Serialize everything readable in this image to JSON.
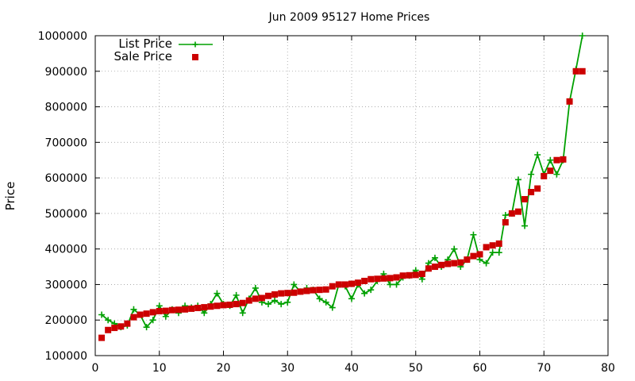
{
  "chart_data": {
    "type": "line",
    "title": "Jun 2009 95127 Home Prices",
    "xlabel": "",
    "ylabel": "Price",
    "xlim": [
      0,
      80
    ],
    "ylim": [
      100000,
      1000000
    ],
    "x_ticks": [
      0,
      10,
      20,
      30,
      40,
      50,
      60,
      70,
      80
    ],
    "y_ticks": [
      100000,
      200000,
      300000,
      400000,
      500000,
      600000,
      700000,
      800000,
      900000,
      1000000
    ],
    "grid": true,
    "legend_position": "top-left",
    "series": [
      {
        "name": "List Price",
        "style": "line-with-plus-markers",
        "color": "#00a000",
        "x": [
          1,
          2,
          3,
          4,
          5,
          6,
          7,
          8,
          9,
          10,
          11,
          12,
          13,
          14,
          15,
          16,
          17,
          18,
          19,
          20,
          21,
          22,
          23,
          24,
          25,
          26,
          27,
          28,
          29,
          30,
          31,
          32,
          33,
          34,
          35,
          36,
          37,
          38,
          39,
          40,
          41,
          42,
          43,
          44,
          45,
          46,
          47,
          48,
          49,
          50,
          51,
          52,
          53,
          54,
          55,
          56,
          57,
          58,
          59,
          60,
          61,
          62,
          63,
          64,
          65,
          66,
          67,
          68,
          69,
          70,
          71,
          72,
          73,
          74,
          75,
          76
        ],
        "y": [
          215000,
          200000,
          190000,
          180000,
          185000,
          230000,
          215000,
          180000,
          200000,
          240000,
          210000,
          230000,
          220000,
          240000,
          235000,
          240000,
          220000,
          245000,
          275000,
          245000,
          240000,
          270000,
          220000,
          260000,
          290000,
          250000,
          245000,
          255000,
          245000,
          250000,
          300000,
          280000,
          290000,
          285000,
          260000,
          250000,
          235000,
          300000,
          295000,
          260000,
          300000,
          275000,
          285000,
          310000,
          330000,
          300000,
          300000,
          320000,
          325000,
          340000,
          315000,
          360000,
          375000,
          350000,
          370000,
          400000,
          350000,
          370000,
          440000,
          370000,
          360000,
          390000,
          390000,
          495000,
          500000,
          595000,
          465000,
          610000,
          665000,
          610000,
          650000,
          610000,
          650000,
          815000,
          905000,
          1000000
        ]
      },
      {
        "name": "Sale Price",
        "style": "square-markers",
        "color": "#cc0000",
        "x": [
          1,
          2,
          3,
          4,
          5,
          6,
          7,
          8,
          9,
          10,
          11,
          12,
          13,
          14,
          15,
          16,
          17,
          18,
          19,
          20,
          21,
          22,
          23,
          24,
          25,
          26,
          27,
          28,
          29,
          30,
          31,
          32,
          33,
          34,
          35,
          36,
          37,
          38,
          39,
          40,
          41,
          42,
          43,
          44,
          45,
          46,
          47,
          48,
          49,
          50,
          51,
          52,
          53,
          54,
          55,
          56,
          57,
          58,
          59,
          60,
          61,
          62,
          63,
          64,
          65,
          66,
          67,
          68,
          69,
          70,
          71,
          72,
          73,
          74,
          75,
          76
        ],
        "y": [
          150000,
          172000,
          178000,
          182000,
          190000,
          208000,
          215000,
          218000,
          222000,
          225000,
          226000,
          228000,
          229000,
          230000,
          232000,
          234000,
          236000,
          238000,
          240000,
          242000,
          243000,
          245000,
          248000,
          255000,
          260000,
          262000,
          268000,
          272000,
          275000,
          276000,
          277000,
          280000,
          282000,
          284000,
          285000,
          286000,
          295000,
          300000,
          300000,
          302000,
          305000,
          310000,
          315000,
          316000,
          317000,
          318000,
          320000,
          325000,
          326000,
          327000,
          330000,
          345000,
          350000,
          355000,
          358000,
          360000,
          362000,
          370000,
          380000,
          385000,
          405000,
          410000,
          415000,
          475000,
          500000,
          505000,
          540000,
          560000,
          570000,
          605000,
          620000,
          650000,
          652000,
          815000,
          900000,
          900000
        ]
      }
    ]
  }
}
